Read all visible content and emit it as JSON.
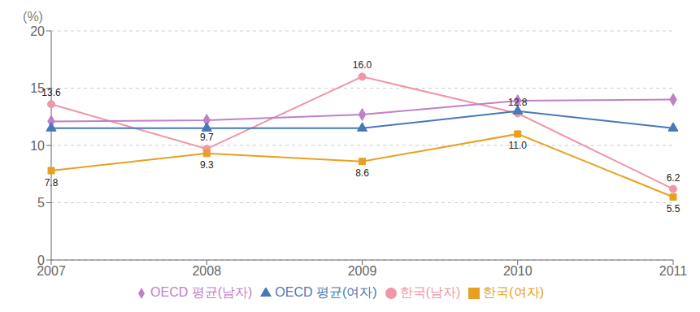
{
  "chart_data": {
    "type": "line",
    "ylabel": "(%)",
    "categories": [
      "2007",
      "2008",
      "2009",
      "2010",
      "2011"
    ],
    "series": [
      {
        "name": "한국(남자)",
        "color": "#f096a8",
        "marker": "circle",
        "line_style": "solid",
        "values": [
          13.6,
          9.7,
          16.0,
          12.8,
          6.2
        ],
        "data_labels": true,
        "value_labels": [
          "13.6",
          "9.7",
          "16.0",
          "12.8",
          "6.2"
        ]
      },
      {
        "name": "한국(여자)",
        "color": "#e8a020",
        "marker": "square",
        "line_style": "solid",
        "values": [
          7.8,
          9.3,
          8.6,
          11.0,
          5.5
        ],
        "data_labels": true,
        "value_labels": [
          "7.8",
          "9.3",
          "8.6",
          "11.0",
          "5.5"
        ]
      },
      {
        "name": "OECD 평균(남자)",
        "color": "#c080c8",
        "marker": "diamond",
        "line_style": "solid",
        "values": [
          12.1,
          12.2,
          12.7,
          13.9,
          14.0
        ]
      },
      {
        "name": "OECD 평균(여자)",
        "color": "#4878b8",
        "marker": "triangle",
        "line_style": "solid",
        "values": [
          11.5,
          11.5,
          11.5,
          13.0,
          11.5
        ]
      }
    ],
    "ylim": [
      0,
      20
    ],
    "yticks": [
      0,
      5,
      10,
      15,
      20
    ],
    "grid": true,
    "legend": "bottom"
  }
}
